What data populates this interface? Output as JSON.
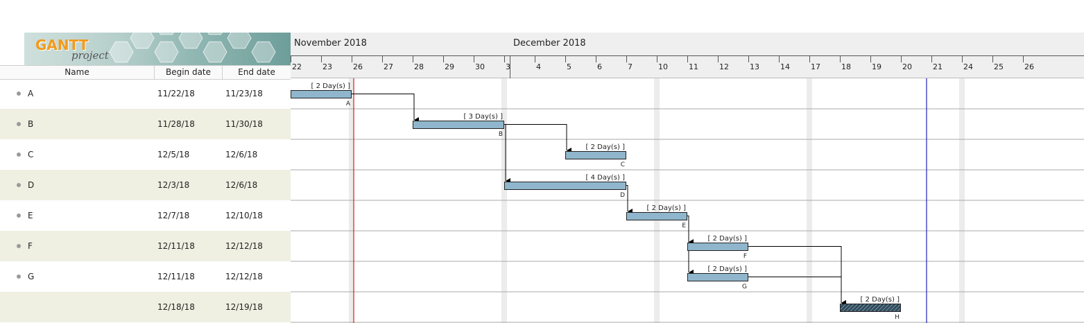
{
  "logo": {
    "word": "GANTT",
    "sub": "project"
  },
  "table": {
    "headers": {
      "name": "Name",
      "begin": "Begin date",
      "end": "End date"
    },
    "rows": [
      {
        "name": "A",
        "begin": "11/22/18",
        "end": "11/23/18"
      },
      {
        "name": "B",
        "begin": "11/28/18",
        "end": "11/30/18"
      },
      {
        "name": "C",
        "begin": "12/5/18",
        "end": "12/6/18"
      },
      {
        "name": "D",
        "begin": "12/3/18",
        "end": "12/6/18"
      },
      {
        "name": "E",
        "begin": "12/7/18",
        "end": "12/10/18"
      },
      {
        "name": "F",
        "begin": "12/11/18",
        "end": "12/12/18"
      },
      {
        "name": "G",
        "begin": "12/11/18",
        "end": "12/12/18"
      },
      {
        "name": "",
        "begin": "12/18/18",
        "end": "12/19/18"
      }
    ]
  },
  "timeline": {
    "months": [
      "November 2018",
      "December 2018"
    ],
    "day_labels": [
      "22",
      "23",
      "26",
      "27",
      "28",
      "29",
      "30",
      "3",
      "4",
      "5",
      "6",
      "7",
      "10",
      "11",
      "12",
      "13",
      "14",
      "17",
      "18",
      "19",
      "20",
      "21",
      "24",
      "25",
      "26"
    ]
  },
  "chart": {
    "bars": [
      {
        "label": "A",
        "duration": "[ 2 Day(s) ]",
        "start": "11/22/18",
        "end": "11/23/18",
        "hatched": false
      },
      {
        "label": "B",
        "duration": "[ 3 Day(s) ]",
        "start": "11/28/18",
        "end": "11/30/18",
        "hatched": false
      },
      {
        "label": "C",
        "duration": "[ 2 Day(s) ]",
        "start": "12/5/18",
        "end": "12/6/18",
        "hatched": false
      },
      {
        "label": "D",
        "duration": "[ 4 Day(s) ]",
        "start": "12/3/18",
        "end": "12/6/18",
        "hatched": false
      },
      {
        "label": "E",
        "duration": "[ 2 Day(s) ]",
        "start": "12/7/18",
        "end": "12/10/18",
        "hatched": false
      },
      {
        "label": "F",
        "duration": "[ 2 Day(s) ]",
        "start": "12/11/18",
        "end": "12/12/18",
        "hatched": false
      },
      {
        "label": "G",
        "duration": "[ 2 Day(s) ]",
        "start": "12/11/18",
        "end": "12/12/18",
        "hatched": false
      },
      {
        "label": "H",
        "duration": "[ 2 Day(s) ]",
        "start": "12/18/18",
        "end": "12/19/18",
        "hatched": true
      }
    ],
    "dependencies": [
      [
        "A",
        "B"
      ],
      [
        "B",
        "C"
      ],
      [
        "B",
        "D"
      ],
      [
        "D",
        "E"
      ],
      [
        "E",
        "F"
      ],
      [
        "E",
        "G"
      ],
      [
        "F",
        "H"
      ],
      [
        "G",
        "H"
      ]
    ],
    "colors": {
      "bar": "#8fb6cc",
      "today_line": "#e02020",
      "project_end_line": "#2020c0",
      "weekend": "#ececec"
    }
  }
}
